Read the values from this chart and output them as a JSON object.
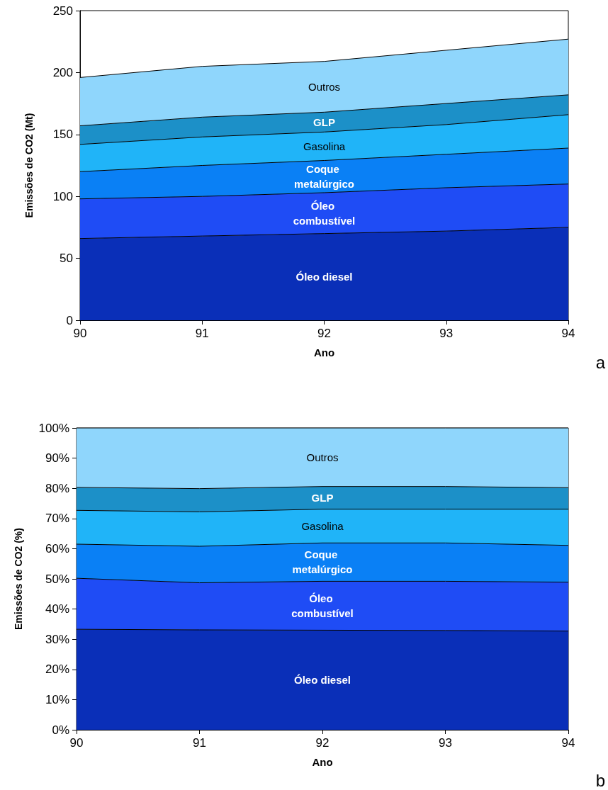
{
  "chart_data": [
    {
      "type": "area",
      "stacked": true,
      "xlabel": "Ano",
      "ylabel": "Emissões de CO2 (Mt)",
      "categories": [
        "90",
        "91",
        "92",
        "93",
        "94"
      ],
      "ylim": [
        0,
        250
      ],
      "yticks": [
        0,
        50,
        100,
        150,
        200,
        250
      ],
      "grid": false,
      "legend": false,
      "annotations": [
        "a"
      ],
      "series": [
        {
          "name": "Óleo diesel",
          "color": "#0a2fb8",
          "values": [
            66,
            68,
            70,
            72,
            75
          ]
        },
        {
          "name": "Óleo combustível",
          "color": "#1f4cf5",
          "values": [
            32,
            32,
            33,
            35,
            35
          ]
        },
        {
          "name": "Coque metalúrgico",
          "color": "#0a80f5",
          "values": [
            22,
            25,
            26,
            27,
            29
          ]
        },
        {
          "name": "Gasolina",
          "color": "#20b4f8",
          "values": [
            22,
            23,
            23,
            24,
            27
          ]
        },
        {
          "name": "GLP",
          "color": "#1c90c8",
          "values": [
            15,
            16,
            16,
            17,
            16
          ]
        },
        {
          "name": "Outros",
          "color": "#8fd6fc",
          "values": [
            39,
            41,
            41,
            43,
            45
          ]
        }
      ]
    },
    {
      "type": "area",
      "stacked": true,
      "xlabel": "Ano",
      "ylabel": "Emissões de CO2 (%)",
      "categories": [
        "90",
        "91",
        "92",
        "93",
        "94"
      ],
      "ylim": [
        0,
        100
      ],
      "yticks": [
        {
          "value": 0,
          "label": "0%"
        },
        {
          "value": 10,
          "label": "10%"
        },
        {
          "value": 20,
          "label": "20%"
        },
        {
          "value": 30,
          "label": "30%"
        },
        {
          "value": 40,
          "label": "40%"
        },
        {
          "value": 50,
          "label": "50%"
        },
        {
          "value": 60,
          "label": "60%"
        },
        {
          "value": 70,
          "label": "70%"
        },
        {
          "value": 80,
          "label": "80%"
        },
        {
          "value": 90,
          "label": "90%"
        },
        {
          "value": 100,
          "label": "100%"
        }
      ],
      "grid": false,
      "legend": false,
      "annotations": [
        "b"
      ],
      "series": [
        {
          "name": "Óleo diesel",
          "color": "#0a2fb8",
          "values": [
            33.3,
            33.1,
            33.0,
            32.9,
            32.7
          ]
        },
        {
          "name": "Óleo combustível",
          "color": "#1f4cf5",
          "values": [
            16.9,
            15.6,
            16.2,
            16.3,
            16.2
          ]
        },
        {
          "name": "Coque metalúrgico",
          "color": "#0a80f5",
          "values": [
            11.3,
            12.1,
            12.7,
            12.7,
            12.2
          ]
        },
        {
          "name": "Gasolina",
          "color": "#20b4f8",
          "values": [
            11.2,
            11.4,
            11.2,
            11.2,
            12.0
          ]
        },
        {
          "name": "GLP",
          "color": "#1c90c8",
          "values": [
            7.6,
            7.7,
            7.5,
            7.5,
            7.1
          ]
        },
        {
          "name": "Outros",
          "color": "#8fd6fc",
          "values": [
            19.7,
            20.1,
            19.4,
            19.4,
            19.8
          ]
        }
      ]
    }
  ]
}
